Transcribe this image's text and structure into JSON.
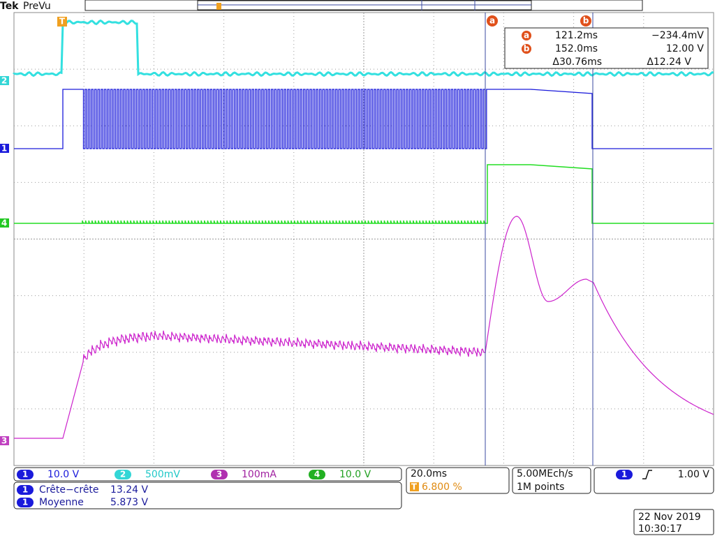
{
  "header": {
    "brand": "Tek",
    "mode": "PreVu"
  },
  "cursors": {
    "a": {
      "label": "a",
      "time": "121.2ms",
      "value": "−234.4mV"
    },
    "b": {
      "label": "b",
      "time": "152.0ms",
      "value": "12.00 V"
    },
    "delta": {
      "time": "Δ30.76ms",
      "value": "Δ12.24 V"
    }
  },
  "channel_markers": [
    "2",
    "1",
    "4",
    "3"
  ],
  "trigger_marker": "T",
  "channels": [
    {
      "id": "1",
      "scale": "10.0 V"
    },
    {
      "id": "2",
      "scale": "500mV"
    },
    {
      "id": "3",
      "scale": "100mA"
    },
    {
      "id": "4",
      "scale": "10.0 V"
    }
  ],
  "measurements": [
    {
      "channel": "1",
      "name": "Crête−crête",
      "value": "13.24 V"
    },
    {
      "channel": "1",
      "name": "Moyenne",
      "value": "5.873 V"
    }
  ],
  "timebase": {
    "scale": "20.0ms",
    "trigger_icon": "T",
    "trigger_position": "6.800 %"
  },
  "acquisition": {
    "rate": "5.00MEch/s",
    "length": "1M points"
  },
  "trigger": {
    "channel": "1",
    "level": "1.00 V"
  },
  "datetime": {
    "date": "22 Nov 2019",
    "time": "10:30:17"
  }
}
